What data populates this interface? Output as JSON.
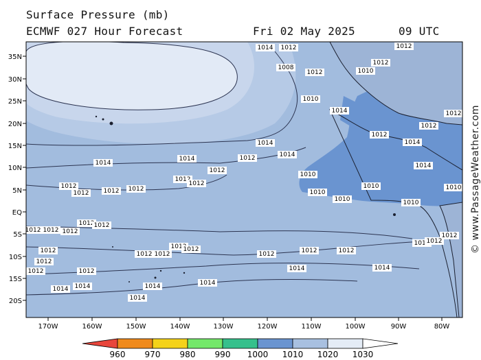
{
  "header": {
    "title": "Surface Pressure (mb)",
    "model": "ECMWF 027 Hour Forecast",
    "valid_date": "Fri 02 May 2025",
    "valid_time": "09 UTC"
  },
  "watermark": "© www.PassageWeather.com",
  "axes": {
    "lat_labels": [
      "35N",
      "30N",
      "25N",
      "20N",
      "15N",
      "10N",
      "5N",
      "EQ",
      "5S",
      "10S",
      "15S",
      "20S"
    ],
    "lon_labels": [
      "170W",
      "160W",
      "150W",
      "140W",
      "130W",
      "120W",
      "110W",
      "100W",
      "90W",
      "80W"
    ]
  },
  "isobar_labels": [
    "1014",
    "1014",
    "1014",
    "1012",
    "1012",
    "1014",
    "1012",
    "1012",
    "1012",
    "1012",
    "1012",
    "1012",
    "1012",
    "1012",
    "1012",
    "1012",
    "1012",
    "1012",
    "1012",
    "1012",
    "1012",
    "1014",
    "1014",
    "1014",
    "1014",
    "1014",
    "1012",
    "1012",
    "1012",
    "1012",
    "1012",
    "1012",
    "1012",
    "1010",
    "1010",
    "1010",
    "1010",
    "1010",
    "1012",
    "1012",
    "1014",
    "1014",
    "1012",
    "1014",
    "1012",
    "1008",
    "1010",
    "1012",
    "1012",
    "1012",
    "1010",
    "1012",
    "1014",
    "1012",
    "1014",
    "1014",
    "1012",
    "1010",
    "1012",
    "1012"
  ],
  "colorbar": {
    "values": [
      "960",
      "970",
      "980",
      "990",
      "1000",
      "1010",
      "1020",
      "1030"
    ],
    "colors": [
      "#e8463c",
      "#f08a1c",
      "#f4d21a",
      "#74e86a",
      "#36c08c",
      "#6a94d0",
      "#a8c0e0",
      "#e4ecf6",
      "#ffffff"
    ]
  },
  "palette": {
    "band_1010_1012": "#6a94d0",
    "band_1012_1020": "#a2bcde",
    "band_1020_1025": "#c4d4ec",
    "band_1025_1030": "#e2eaf6",
    "land": "#9db4d6",
    "isobar": "#2b3350"
  }
}
